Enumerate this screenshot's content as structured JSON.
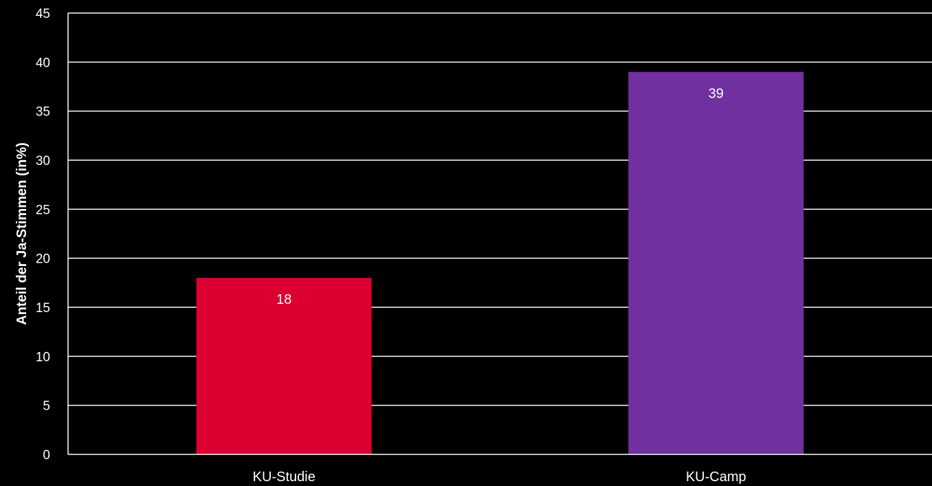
{
  "chart_data": {
    "type": "bar",
    "categories": [
      "KU-Studie",
      "KU-Camp"
    ],
    "values": [
      18,
      39
    ],
    "data_labels": [
      "18",
      "39"
    ],
    "bar_colors": [
      "#dc0032",
      "#7030a0"
    ],
    "title": "",
    "xlabel": "",
    "ylabel": "Anteil der Ja-Stimmen (in%)",
    "ylim": [
      0,
      45
    ],
    "yticks": [
      0,
      5,
      10,
      15,
      20,
      25,
      30,
      35,
      40,
      45
    ],
    "ytick_labels": [
      "0",
      "5",
      "10",
      "15",
      "20",
      "25",
      "30",
      "35",
      "40",
      "45"
    ],
    "grid": true,
    "legend": "none",
    "background": "#000000",
    "text_color": "#ffffff"
  }
}
